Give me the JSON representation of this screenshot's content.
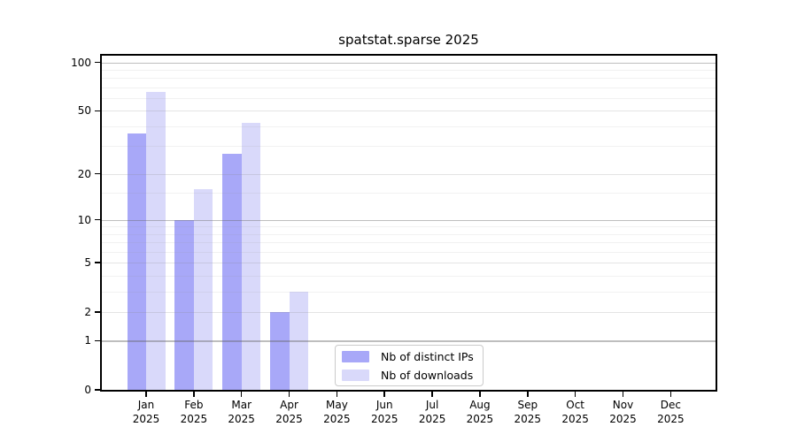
{
  "title": "spatstat.sparse 2025",
  "chart_data": {
    "type": "bar",
    "title": "spatstat.sparse 2025",
    "categories": [
      "Jan",
      "Feb",
      "Mar",
      "Apr",
      "May",
      "Jun",
      "Jul",
      "Aug",
      "Sep",
      "Oct",
      "Nov",
      "Dec"
    ],
    "year_label": "2025",
    "series": [
      {
        "name": "Nb of distinct IPs",
        "color": "#a8a8f8",
        "values": [
          36,
          10,
          27,
          2,
          0,
          0,
          0,
          0,
          0,
          0,
          0,
          0
        ]
      },
      {
        "name": "Nb of downloads",
        "color": "#d9d9fa",
        "values": [
          66,
          16,
          42,
          3,
          0,
          0,
          0,
          0,
          0,
          0,
          0,
          0
        ]
      }
    ],
    "y_axis": {
      "scale": "log1p",
      "ticks": [
        0,
        1,
        2,
        5,
        10,
        20,
        50,
        100
      ],
      "max": 110,
      "decade_gridlines": [
        1,
        10,
        100
      ],
      "minor_gridlines": [
        3,
        4,
        6,
        7,
        8,
        9,
        15,
        30,
        40,
        60,
        70,
        80,
        90
      ]
    },
    "x_axis": {
      "label_lines": 2
    },
    "legend": {
      "position": "inside-bottom-center"
    },
    "grid": "on"
  }
}
